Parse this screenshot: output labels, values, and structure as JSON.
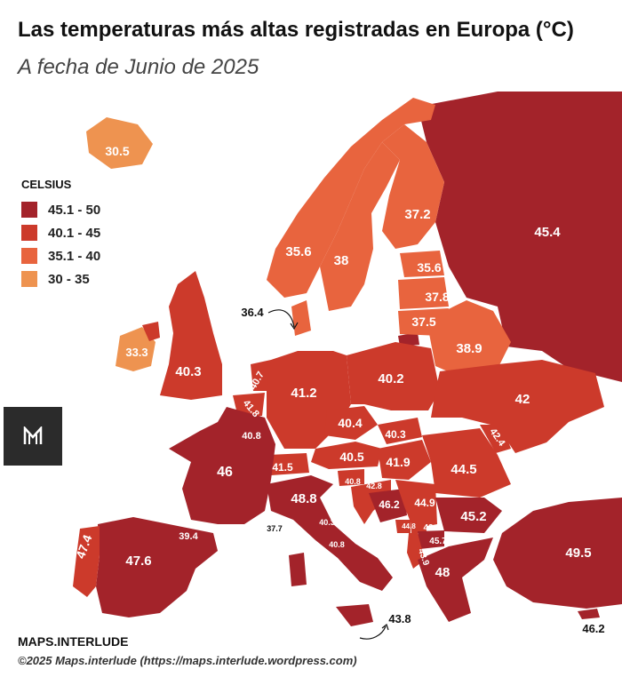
{
  "header": {
    "title": "Las temperaturas más altas registradas en Europa (°C)",
    "subtitle": "A fecha de Junio de 2025"
  },
  "legend": {
    "title": "CELSIUS",
    "items": [
      {
        "label": "45.1 - 50",
        "color": "#a3232a"
      },
      {
        "label": "40.1 - 45",
        "color": "#cc3a2b"
      },
      {
        "label": "35.1 - 40",
        "color": "#e8643e"
      },
      {
        "label": "30 - 35",
        "color": "#ee9350"
      }
    ]
  },
  "map": {
    "values": {
      "iceland": "30.5",
      "ireland": "33.3",
      "uk": "40.3",
      "norway": "35.6",
      "sweden": "38",
      "finland": "37.2",
      "denmark": "36.4",
      "estonia": "35.6",
      "latvia": "37.8",
      "lithuania": "37.5",
      "belarus": "38.9",
      "russia": "45.4",
      "netherlands": "40.7",
      "belgium": "41.8",
      "luxembourg": "40.8",
      "germany": "41.2",
      "poland": "40.2",
      "ukraine": "42",
      "moldova": "42.4",
      "czechia": "40.4",
      "slovakia": "40.3",
      "austria": "40.5",
      "hungary": "41.9",
      "romania": "44.5",
      "switzerland": "41.5",
      "slovenia": "40.8",
      "croatia": "42.8",
      "bosnia": "46.2",
      "serbia": "44.9",
      "montenegro": "44.8",
      "kosovo": "42",
      "north_macedonia": "45.7",
      "albania": "43.9",
      "bulgaria": "45.2",
      "greece": "48",
      "turkey": "49.5",
      "cyprus": "46.2",
      "france": "46",
      "spain": "47.6",
      "portugal": "47.4",
      "andorra": "39.4",
      "monaco": "37.7",
      "italy": "48.8",
      "san_marino": "40.3",
      "vatican": "40.8",
      "malta": "43.8"
    }
  },
  "footer": {
    "brand": "MAPS.INTERLUDE",
    "credit": "©2025 Maps.interlude (https://maps.interlude.wordpress.com)"
  }
}
